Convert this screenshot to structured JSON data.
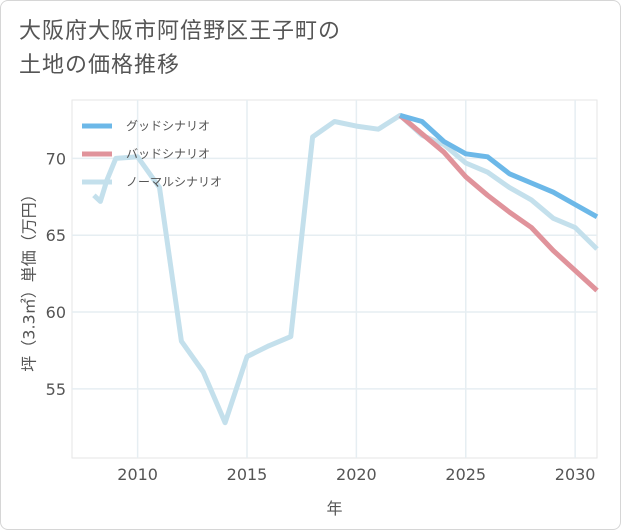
{
  "title_lines": [
    "大阪府大阪市阿倍野区王子町の",
    "土地の価格推移"
  ],
  "chart_data": {
    "type": "line",
    "title": "大阪府大阪市阿倍野区王子町の土地の価格推移",
    "xlabel": "年",
    "ylabel": "坪（3.3㎡）単価（万円）",
    "xlim": [
      2007,
      2031
    ],
    "ylim": [
      50.5,
      73.8
    ],
    "xticks": [
      2010,
      2015,
      2020,
      2025,
      2030
    ],
    "yticks": [
      55,
      60,
      65,
      70
    ],
    "legend_position": "top-left",
    "series": [
      {
        "name": "グッドシナリオ",
        "color": "#6cb8e8",
        "x": [
          2022,
          2023,
          2024,
          2025,
          2026,
          2027,
          2028,
          2029,
          2030,
          2031
        ],
        "y": [
          72.8,
          72.4,
          71.1,
          70.3,
          70.1,
          69.0,
          68.4,
          67.8,
          67.0,
          66.2
        ]
      },
      {
        "name": "バッドシナリオ",
        "color": "#e0939b",
        "x": [
          2022,
          2023,
          2024,
          2025,
          2026,
          2027,
          2028,
          2029,
          2030,
          2031
        ],
        "y": [
          72.8,
          71.6,
          70.4,
          68.8,
          67.6,
          66.5,
          65.5,
          64.0,
          62.7,
          61.4
        ]
      },
      {
        "name": "ノーマルシナリオ",
        "color": "#c4e0ec",
        "x": [
          2008,
          2008.3,
          2008.6,
          2009,
          2010,
          2011,
          2012,
          2013,
          2014,
          2015,
          2016,
          2017,
          2018,
          2019,
          2020,
          2021,
          2022,
          2023,
          2024,
          2025,
          2026,
          2027,
          2028,
          2029,
          2030,
          2031
        ],
        "y": [
          67.6,
          67.2,
          68.6,
          70.0,
          70.1,
          68.1,
          58.1,
          56.1,
          52.8,
          57.1,
          57.8,
          58.4,
          71.4,
          72.4,
          72.1,
          71.9,
          72.8,
          71.5,
          70.9,
          69.7,
          69.1,
          68.1,
          67.3,
          66.1,
          65.5,
          64.1
        ]
      }
    ]
  }
}
